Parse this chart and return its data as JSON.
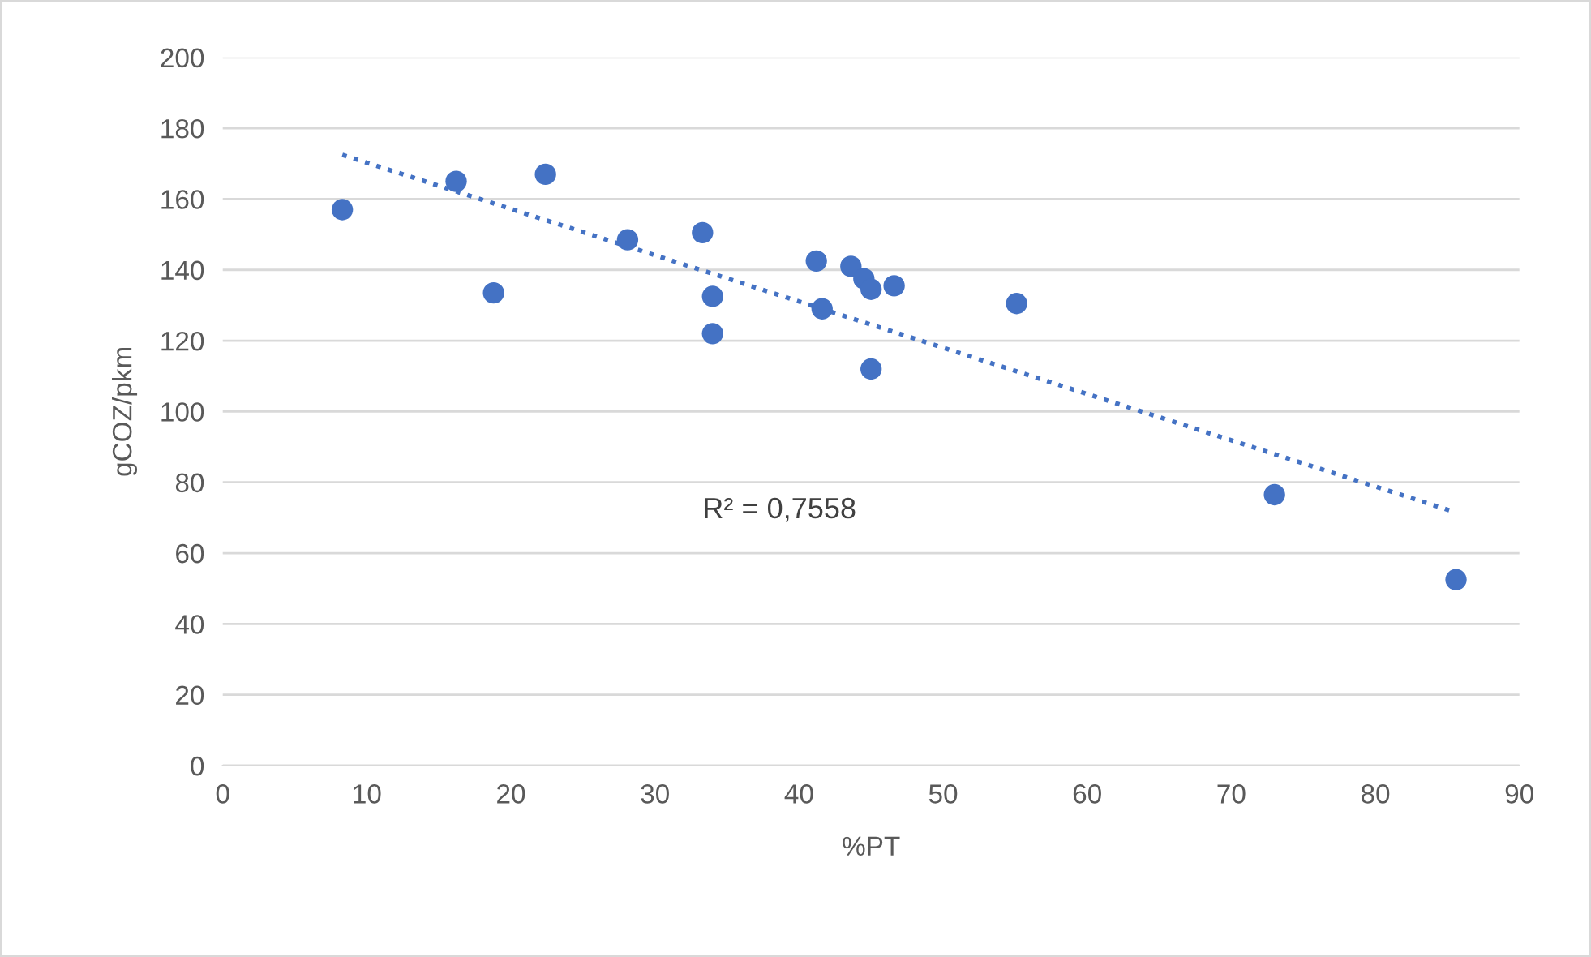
{
  "chart_data": {
    "type": "scatter",
    "xlabel": "%PT",
    "ylabel": "gCOZ/pkm",
    "series": [
      {
        "color": "#4472c4",
        "marker": "circle",
        "x": [
          8.3,
          16.2,
          18.8,
          22.4,
          28.1,
          33.3,
          34.0,
          34.0,
          41.2,
          41.6,
          43.6,
          44.5,
          45.0,
          45.0,
          46.6,
          55.1,
          73.0,
          85.6
        ],
        "values": [
          157,
          165,
          133.5,
          167,
          148.5,
          150.5,
          132.5,
          122,
          142.5,
          129,
          141,
          137.5,
          134.5,
          112,
          135.5,
          130.5,
          76.5,
          52.5
        ]
      },
      {
        "type": "line",
        "color": "#4472c4",
        "line_style": "dotted",
        "marker": "none",
        "x": [
          8.3,
          85.6
        ],
        "values": [
          172.5,
          71.5
        ]
      }
    ],
    "annotations": [
      "R² = 0,7558"
    ],
    "xlim": [
      0,
      90
    ],
    "xticks": [
      0,
      10,
      20,
      30,
      40,
      50,
      60,
      70,
      80,
      90
    ],
    "ylim": [
      0,
      200
    ],
    "yticks": [
      0,
      20,
      40,
      60,
      80,
      100,
      120,
      140,
      160,
      180,
      200
    ],
    "grid": "y",
    "legend": false
  }
}
